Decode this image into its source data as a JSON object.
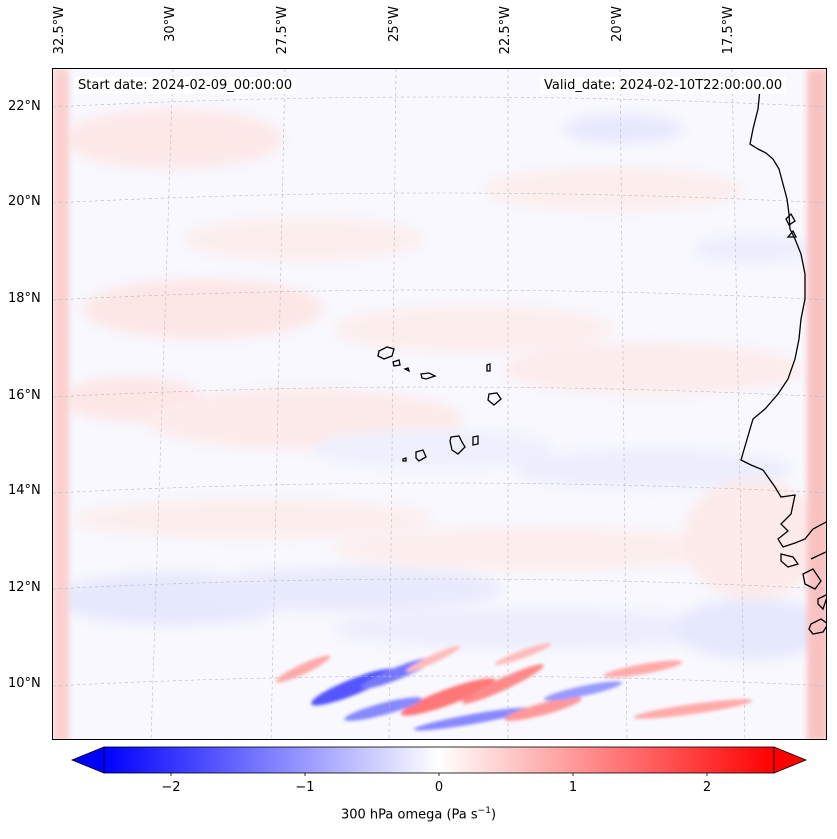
{
  "map": {
    "start_date": "Start date: 2024-02-09_00:00:00",
    "valid_date": "Valid_date: 2024-02-10T22:00:00.00",
    "projection": "lambert-conic",
    "field": "300 hPa omega",
    "latitude_labels": [
      "22°N",
      "20°N",
      "18°N",
      "16°N",
      "14°N",
      "12°N",
      "10°N"
    ],
    "longitude_labels": [
      "32.5°W",
      "30°W",
      "27.5°W",
      "25°W",
      "22.5°W",
      "20°W",
      "17.5°W"
    ],
    "features": [
      "Cape Verde islands",
      "West African coastline",
      "graticule"
    ]
  },
  "colorbar": {
    "title": "300 hPa omega (Pa s",
    "title_superscript": "−1",
    "title_suffix": ")",
    "ticks": [
      "−2",
      "−1",
      "0",
      "1",
      "2"
    ],
    "range": [
      -2.5,
      2.5
    ],
    "colormap": "bwr",
    "colors": {
      "min": "#0000ff",
      "mid": "#ffffff",
      "max": "#ff0000"
    },
    "extend": "both"
  }
}
